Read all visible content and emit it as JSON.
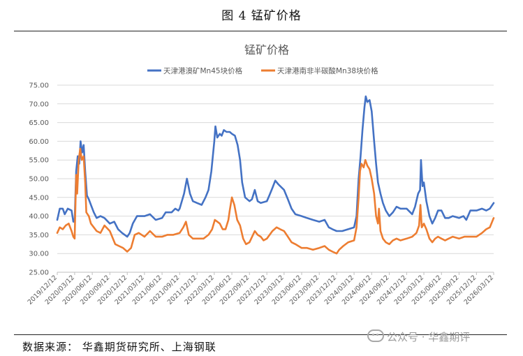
{
  "figure_caption": "图 4  锰矿价格",
  "source_note": "数据来源：  华鑫期货研究所、上海钢联",
  "watermark": "公众号 · 华鑫期评",
  "colors": {
    "series1": "#4472C4",
    "series2": "#ED7D31",
    "grid": "#d9d9d9",
    "axis_text": "#595959"
  },
  "chart_data": {
    "type": "line",
    "title": "锰矿价格",
    "xlabel": "",
    "ylabel": "",
    "ylim": [
      25,
      75
    ],
    "yticks": [
      "25.00",
      "30.00",
      "35.00",
      "40.00",
      "45.00",
      "50.00",
      "55.00",
      "60.00",
      "65.00",
      "70.00",
      "75.00"
    ],
    "xticks": [
      "2019/12/12",
      "2020/03/12",
      "2020/06/12",
      "2020/09/12",
      "2020/12/12",
      "2021/03/12",
      "2021/06/12",
      "2021/09/12",
      "2021/12/12",
      "2022/03/12",
      "2022/06/12",
      "2022/09/12",
      "2022/12/12",
      "2023/03/12",
      "2023/06/12",
      "2023/09/12",
      "2023/12/12",
      "2024/03/12",
      "2024/06/12",
      "2024/09/12",
      "2024/12/12",
      "2025/03/12",
      "2025/06/12",
      "2025/09/12",
      "2025/12/12",
      "2026/03/12"
    ],
    "grid": true,
    "legend_position": "top",
    "series": [
      {
        "name": "天津港澳矿Mn45块价格",
        "points": [
          [
            "2019/12/12",
            39.0
          ],
          [
            "2019/12/25",
            42.0
          ],
          [
            "2020/01/10",
            42.0
          ],
          [
            "2020/01/20",
            40.5
          ],
          [
            "2020/02/05",
            42.0
          ],
          [
            "2020/02/25",
            41.5
          ],
          [
            "2020/03/05",
            38.5
          ],
          [
            "2020/03/12",
            38.5
          ],
          [
            "2020/03/20",
            52.0
          ],
          [
            "2020/03/28",
            56.0
          ],
          [
            "2020/04/05",
            54.0
          ],
          [
            "2020/04/12",
            60.0
          ],
          [
            "2020/04/20",
            57.0
          ],
          [
            "2020/04/28",
            59.0
          ],
          [
            "2020/05/06",
            52.0
          ],
          [
            "2020/05/15",
            45.5
          ],
          [
            "2020/05/25",
            44.5
          ],
          [
            "2020/06/05",
            43.0
          ],
          [
            "2020/06/20",
            41.0
          ],
          [
            "2020/07/05",
            39.5
          ],
          [
            "2020/07/25",
            40.0
          ],
          [
            "2020/08/15",
            39.5
          ],
          [
            "2020/09/12",
            38.0
          ],
          [
            "2020/10/05",
            38.5
          ],
          [
            "2020/10/25",
            36.5
          ],
          [
            "2020/11/15",
            35.5
          ],
          [
            "2020/12/12",
            34.5
          ],
          [
            "2020/12/25",
            35.5
          ],
          [
            "2021/01/10",
            38.0
          ],
          [
            "2021/02/01",
            40.0
          ],
          [
            "2021/03/12",
            40.0
          ],
          [
            "2021/04/10",
            40.5
          ],
          [
            "2021/05/10",
            39.0
          ],
          [
            "2021/06/12",
            39.5
          ],
          [
            "2021/07/01",
            41.0
          ],
          [
            "2021/08/01",
            41.0
          ],
          [
            "2021/08/20",
            42.0
          ],
          [
            "2021/09/05",
            41.5
          ],
          [
            "2021/09/12",
            42.0
          ],
          [
            "2021/10/05",
            46.0
          ],
          [
            "2021/10/20",
            50.0
          ],
          [
            "2021/11/05",
            46.0
          ],
          [
            "2021/11/20",
            44.0
          ],
          [
            "2021/12/12",
            43.5
          ],
          [
            "2022/01/05",
            43.0
          ],
          [
            "2022/01/25",
            45.0
          ],
          [
            "2022/02/10",
            47.0
          ],
          [
            "2022/02/25",
            52.0
          ],
          [
            "2022/03/12",
            60.0
          ],
          [
            "2022/03/18",
            64.0
          ],
          [
            "2022/03/28",
            61.0
          ],
          [
            "2022/04/10",
            62.0
          ],
          [
            "2022/04/20",
            61.5
          ],
          [
            "2022/05/01",
            63.0
          ],
          [
            "2022/05/15",
            62.5
          ],
          [
            "2022/06/01",
            62.5
          ],
          [
            "2022/06/12",
            62.0
          ],
          [
            "2022/06/28",
            61.5
          ],
          [
            "2022/07/12",
            59.0
          ],
          [
            "2022/07/25",
            55.0
          ],
          [
            "2022/08/05",
            49.0
          ],
          [
            "2022/08/20",
            45.0
          ],
          [
            "2022/09/12",
            44.0
          ],
          [
            "2022/09/25",
            44.5
          ],
          [
            "2022/10/10",
            47.0
          ],
          [
            "2022/10/25",
            44.0
          ],
          [
            "2022/11/10",
            43.5
          ],
          [
            "2022/12/12",
            44.0
          ],
          [
            "2022/12/25",
            45.5
          ],
          [
            "2023/01/10",
            47.5
          ],
          [
            "2023/01/25",
            49.5
          ],
          [
            "2023/02/10",
            48.5
          ],
          [
            "2023/03/12",
            47.0
          ],
          [
            "2023/04/01",
            44.5
          ],
          [
            "2023/04/20",
            42.0
          ],
          [
            "2023/05/10",
            40.5
          ],
          [
            "2023/06/12",
            40.0
          ],
          [
            "2023/07/10",
            39.5
          ],
          [
            "2023/08/10",
            39.0
          ],
          [
            "2023/09/12",
            38.5
          ],
          [
            "2023/10/10",
            39.0
          ],
          [
            "2023/11/01",
            37.0
          ],
          [
            "2023/11/20",
            36.5
          ],
          [
            "2023/12/12",
            36.0
          ],
          [
            "2024/01/10",
            36.0
          ],
          [
            "2024/02/10",
            36.5
          ],
          [
            "2024/03/12",
            37.0
          ],
          [
            "2024/03/25",
            40.0
          ],
          [
            "2024/04/05",
            50.0
          ],
          [
            "2024/04/15",
            56.0
          ],
          [
            "2024/04/25",
            63.0
          ],
          [
            "2024/05/05",
            69.0
          ],
          [
            "2024/05/12",
            72.0
          ],
          [
            "2024/05/20",
            70.5
          ],
          [
            "2024/06/01",
            71.0
          ],
          [
            "2024/06/12",
            68.0
          ],
          [
            "2024/06/25",
            60.0
          ],
          [
            "2024/07/05",
            54.0
          ],
          [
            "2024/07/15",
            49.0
          ],
          [
            "2024/07/28",
            46.0
          ],
          [
            "2024/08/10",
            43.5
          ],
          [
            "2024/08/25",
            41.5
          ],
          [
            "2024/09/12",
            40.0
          ],
          [
            "2024/10/01",
            41.0
          ],
          [
            "2024/10/20",
            42.5
          ],
          [
            "2024/11/10",
            42.0
          ],
          [
            "2024/12/12",
            42.0
          ],
          [
            "2025/01/10",
            40.5
          ],
          [
            "2025/01/25",
            42.5
          ],
          [
            "2025/02/10",
            46.0
          ],
          [
            "2025/02/20",
            47.0
          ],
          [
            "2025/02/25",
            55.0
          ],
          [
            "2025/03/05",
            48.0
          ],
          [
            "2025/03/12",
            49.0
          ],
          [
            "2025/03/25",
            44.0
          ],
          [
            "2025/04/10",
            40.0
          ],
          [
            "2025/04/25",
            38.0
          ],
          [
            "2025/05/10",
            39.5
          ],
          [
            "2025/05/25",
            41.5
          ],
          [
            "2025/06/12",
            41.5
          ],
          [
            "2025/07/01",
            39.5
          ],
          [
            "2025/07/20",
            39.5
          ],
          [
            "2025/08/10",
            40.0
          ],
          [
            "2025/09/12",
            39.5
          ],
          [
            "2025/10/05",
            40.0
          ],
          [
            "2025/10/20",
            39.0
          ],
          [
            "2025/11/10",
            41.5
          ],
          [
            "2025/12/12",
            41.5
          ],
          [
            "2026/01/10",
            42.0
          ],
          [
            "2026/02/01",
            41.5
          ],
          [
            "2026/02/20",
            42.0
          ],
          [
            "2026/03/12",
            43.5
          ]
        ]
      },
      {
        "name": "天津港南非半碳酸Mn38块价格",
        "points": [
          [
            "2019/12/12",
            35.5
          ],
          [
            "2019/12/25",
            37.0
          ],
          [
            "2020/01/10",
            36.5
          ],
          [
            "2020/01/25",
            37.5
          ],
          [
            "2020/02/10",
            38.0
          ],
          [
            "2020/02/25",
            36.0
          ],
          [
            "2020/03/05",
            34.5
          ],
          [
            "2020/03/12",
            34.0
          ],
          [
            "2020/03/20",
            51.0
          ],
          [
            "2020/03/25",
            46.0
          ],
          [
            "2020/04/02",
            55.0
          ],
          [
            "2020/04/10",
            58.0
          ],
          [
            "2020/04/18",
            55.0
          ],
          [
            "2020/04/28",
            56.0
          ],
          [
            "2020/05/06",
            49.0
          ],
          [
            "2020/05/12",
            41.0
          ],
          [
            "2020/05/25",
            40.0
          ],
          [
            "2020/06/05",
            38.0
          ],
          [
            "2020/06/20",
            37.0
          ],
          [
            "2020/07/05",
            36.0
          ],
          [
            "2020/07/25",
            35.5
          ],
          [
            "2020/08/15",
            37.5
          ],
          [
            "2020/09/12",
            36.0
          ],
          [
            "2020/10/10",
            32.5
          ],
          [
            "2020/10/30",
            32.0
          ],
          [
            "2020/11/20",
            31.5
          ],
          [
            "2020/12/12",
            30.5
          ],
          [
            "2021/01/01",
            31.5
          ],
          [
            "2021/01/20",
            35.0
          ],
          [
            "2021/02/10",
            35.5
          ],
          [
            "2021/03/12",
            34.5
          ],
          [
            "2021/04/10",
            36.0
          ],
          [
            "2021/05/10",
            34.5
          ],
          [
            "2021/06/12",
            34.5
          ],
          [
            "2021/07/10",
            35.0
          ],
          [
            "2021/08/10",
            35.0
          ],
          [
            "2021/09/12",
            35.5
          ],
          [
            "2021/10/01",
            37.0
          ],
          [
            "2021/10/15",
            38.5
          ],
          [
            "2021/10/30",
            35.0
          ],
          [
            "2021/11/20",
            34.0
          ],
          [
            "2021/12/12",
            34.0
          ],
          [
            "2022/01/15",
            34.0
          ],
          [
            "2022/02/10",
            35.0
          ],
          [
            "2022/03/01",
            36.5
          ],
          [
            "2022/03/15",
            39.0
          ],
          [
            "2022/03/28",
            38.5
          ],
          [
            "2022/04/10",
            38.0
          ],
          [
            "2022/04/25",
            36.5
          ],
          [
            "2022/05/10",
            36.5
          ],
          [
            "2022/05/25",
            39.0
          ],
          [
            "2022/06/01",
            41.5
          ],
          [
            "2022/06/12",
            45.0
          ],
          [
            "2022/06/25",
            43.0
          ],
          [
            "2022/07/10",
            39.0
          ],
          [
            "2022/07/25",
            37.5
          ],
          [
            "2022/08/10",
            34.0
          ],
          [
            "2022/08/25",
            32.5
          ],
          [
            "2022/09/12",
            33.0
          ],
          [
            "2022/10/10",
            36.0
          ],
          [
            "2022/10/25",
            35.0
          ],
          [
            "2022/11/10",
            34.5
          ],
          [
            "2022/11/25",
            33.5
          ],
          [
            "2022/12/12",
            34.0
          ],
          [
            "2023/01/10",
            36.0
          ],
          [
            "2023/02/01",
            37.0
          ],
          [
            "2023/02/20",
            36.5
          ],
          [
            "2023/03/12",
            36.0
          ],
          [
            "2023/04/01",
            34.5
          ],
          [
            "2023/04/20",
            33.0
          ],
          [
            "2023/05/10",
            32.5
          ],
          [
            "2023/06/12",
            31.5
          ],
          [
            "2023/07/10",
            31.5
          ],
          [
            "2023/08/10",
            31.0
          ],
          [
            "2023/09/12",
            31.5
          ],
          [
            "2023/10/10",
            32.0
          ],
          [
            "2023/11/01",
            31.0
          ],
          [
            "2023/11/20",
            30.5
          ],
          [
            "2023/12/12",
            30.0
          ],
          [
            "2023/12/25",
            31.0
          ],
          [
            "2024/01/15",
            32.0
          ],
          [
            "2024/02/10",
            33.0
          ],
          [
            "2024/03/12",
            33.5
          ],
          [
            "2024/03/25",
            37.0
          ],
          [
            "2024/04/05",
            45.0
          ],
          [
            "2024/04/12",
            52.0
          ],
          [
            "2024/04/20",
            54.0
          ],
          [
            "2024/05/01",
            53.0
          ],
          [
            "2024/05/10",
            55.0
          ],
          [
            "2024/05/20",
            53.5
          ],
          [
            "2024/06/01",
            52.5
          ],
          [
            "2024/06/12",
            50.0
          ],
          [
            "2024/06/25",
            46.0
          ],
          [
            "2024/07/05",
            40.0
          ],
          [
            "2024/07/15",
            38.0
          ],
          [
            "2024/07/20",
            42.0
          ],
          [
            "2024/07/28",
            36.0
          ],
          [
            "2024/08/10",
            34.0
          ],
          [
            "2024/08/25",
            33.0
          ],
          [
            "2024/09/12",
            32.5
          ],
          [
            "2024/10/01",
            33.5
          ],
          [
            "2024/10/20",
            34.0
          ],
          [
            "2024/11/10",
            33.5
          ],
          [
            "2024/12/12",
            34.0
          ],
          [
            "2025/01/10",
            34.5
          ],
          [
            "2025/02/01",
            35.5
          ],
          [
            "2025/02/15",
            37.5
          ],
          [
            "2025/02/22",
            43.0
          ],
          [
            "2025/03/01",
            37.0
          ],
          [
            "2025/03/12",
            38.0
          ],
          [
            "2025/03/25",
            36.5
          ],
          [
            "2025/04/10",
            34.0
          ],
          [
            "2025/04/25",
            33.0
          ],
          [
            "2025/05/10",
            34.0
          ],
          [
            "2025/05/25",
            34.5
          ],
          [
            "2025/06/12",
            34.0
          ],
          [
            "2025/07/01",
            33.5
          ],
          [
            "2025/07/20",
            34.0
          ],
          [
            "2025/08/10",
            34.5
          ],
          [
            "2025/09/12",
            34.0
          ],
          [
            "2025/10/10",
            34.5
          ],
          [
            "2025/11/10",
            34.5
          ],
          [
            "2025/12/12",
            34.5
          ],
          [
            "2026/01/10",
            35.5
          ],
          [
            "2026/02/01",
            36.5
          ],
          [
            "2026/02/20",
            37.0
          ],
          [
            "2026/03/12",
            39.5
          ]
        ]
      }
    ]
  }
}
